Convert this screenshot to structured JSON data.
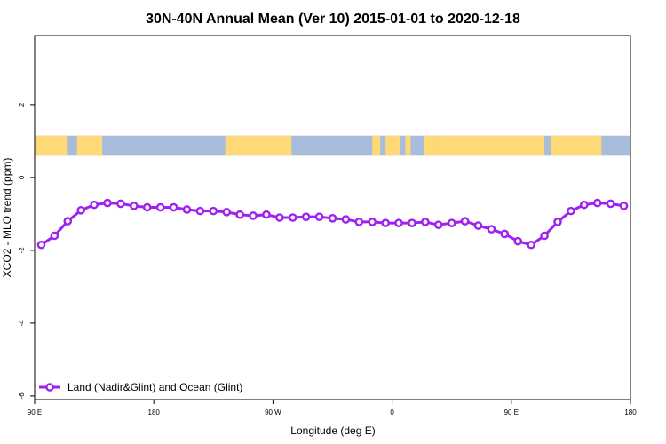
{
  "chart_data": {
    "type": "line",
    "title": "30N-40N Annual Mean (Ver 10)   2015-01-01 to 2020-12-18",
    "xlabel": "Longitude (deg E)",
    "ylabel": "XCO2 - MLO trend (ppm)",
    "x_ticks": [
      {
        "value": 90,
        "label": "90 E"
      },
      {
        "value": 180,
        "label": "180"
      },
      {
        "value": 270,
        "label": "90 W"
      },
      {
        "value": 360,
        "label": "0"
      },
      {
        "value": 450,
        "label": "90 E"
      },
      {
        "value": 540,
        "label": "180"
      }
    ],
    "y_ticks": [
      {
        "value": 2,
        "label": "2"
      },
      {
        "value": 0,
        "label": "0"
      },
      {
        "value": -2,
        "label": "-2"
      },
      {
        "value": -4,
        "label": "-4"
      },
      {
        "value": -6,
        "label": "-6"
      }
    ],
    "xlim": [
      90,
      540
    ],
    "ylim": [
      -6.1,
      3.9
    ],
    "grid": false,
    "legend_position": "bottom-left",
    "series": [
      {
        "name": "Land (Nadir&Glint) and Ocean (Glint)",
        "color": "#a020f0",
        "x": [
          95,
          105,
          115,
          125,
          135,
          145,
          155,
          165,
          175,
          185,
          195,
          205,
          215,
          225,
          235,
          245,
          255,
          265,
          275,
          285,
          295,
          305,
          315,
          325,
          335,
          345,
          355,
          365,
          375,
          385,
          395,
          405,
          415,
          425,
          435,
          445,
          455,
          465,
          475,
          485,
          495,
          505,
          515,
          525,
          535
        ],
        "y": [
          -1.85,
          -1.6,
          -1.2,
          -0.9,
          -0.75,
          -0.7,
          -0.72,
          -0.78,
          -0.82,
          -0.82,
          -0.82,
          -0.88,
          -0.92,
          -0.92,
          -0.95,
          -1.02,
          -1.05,
          -1.02,
          -1.1,
          -1.1,
          -1.08,
          -1.08,
          -1.12,
          -1.15,
          -1.22,
          -1.22,
          -1.25,
          -1.25,
          -1.25,
          -1.22,
          -1.3,
          -1.25,
          -1.2,
          -1.32,
          -1.42,
          -1.55,
          -1.75,
          -1.85,
          -1.6,
          -1.22,
          -0.92,
          -0.75,
          -0.7,
          -0.72,
          -0.78
        ]
      }
    ],
    "map_strip": {
      "y_range": [
        0.6,
        1.15
      ],
      "ocean_color": "#a8bcdc",
      "land_color": "#ffd878",
      "land_segments": [
        [
          90,
          115
        ],
        [
          122,
          141
        ],
        [
          234,
          284
        ],
        [
          345,
          351
        ],
        [
          355,
          366
        ],
        [
          370,
          374
        ],
        [
          384,
          392
        ],
        [
          392,
          450
        ],
        [
          450,
          475
        ],
        [
          480,
          518
        ]
      ]
    }
  }
}
